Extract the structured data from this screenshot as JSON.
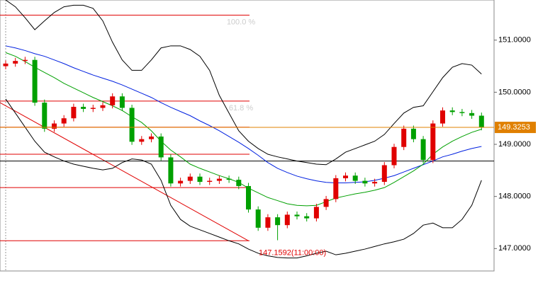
{
  "chart_data": {
    "type": "candlestick",
    "up_color": "#e00000",
    "down_color": "#00a000",
    "open": [
      150.5,
      150.55,
      150.6,
      150.62,
      149.8,
      149.3,
      149.4,
      149.5,
      149.72,
      149.68,
      149.7,
      149.75,
      149.92,
      149.7,
      149.05,
      149.1,
      149.15,
      148.75,
      148.25,
      148.3,
      148.38,
      148.28,
      148.3,
      148.34,
      148.32,
      148.2,
      147.75,
      147.4,
      147.6,
      147.45,
      147.65,
      147.62,
      147.58,
      147.8,
      147.95,
      148.35,
      148.4,
      148.3,
      148.25,
      148.28,
      148.6,
      148.95,
      149.3,
      149.1,
      148.7,
      149.4,
      149.65,
      149.62,
      149.6,
      149.55
    ],
    "high": [
      150.61,
      150.66,
      150.68,
      150.68,
      149.86,
      149.46,
      149.56,
      149.78,
      149.78,
      149.76,
      149.81,
      149.98,
      149.98,
      149.76,
      149.16,
      149.21,
      149.21,
      148.81,
      148.36,
      148.44,
      148.44,
      148.36,
      148.4,
      148.4,
      148.38,
      148.26,
      147.81,
      147.66,
      147.66,
      147.71,
      147.71,
      147.68,
      147.86,
      148.01,
      148.41,
      148.46,
      148.46,
      148.36,
      148.34,
      148.66,
      149.01,
      149.36,
      149.36,
      149.16,
      149.46,
      149.71,
      149.71,
      149.68,
      149.66,
      149.61
    ],
    "low": [
      150.44,
      150.49,
      150.54,
      149.74,
      149.24,
      149.24,
      149.34,
      149.44,
      149.62,
      149.62,
      149.64,
      149.69,
      149.64,
      148.99,
      148.99,
      149.04,
      148.69,
      148.19,
      148.19,
      148.24,
      148.22,
      148.22,
      148.24,
      148.26,
      148.14,
      147.69,
      147.34,
      147.34,
      147.16,
      147.39,
      147.56,
      147.52,
      147.52,
      147.74,
      147.89,
      148.29,
      148.24,
      148.19,
      148.19,
      148.22,
      148.54,
      148.89,
      149.04,
      148.64,
      148.64,
      149.34,
      149.56,
      149.54,
      149.49,
      149.27
    ],
    "close": [
      150.55,
      150.6,
      150.62,
      149.8,
      149.3,
      149.4,
      149.5,
      149.72,
      149.68,
      149.7,
      149.75,
      149.92,
      149.7,
      149.05,
      149.1,
      149.15,
      148.75,
      148.25,
      148.3,
      148.38,
      148.28,
      148.3,
      148.34,
      148.32,
      148.2,
      147.75,
      147.4,
      147.6,
      147.45,
      147.65,
      147.62,
      147.58,
      147.8,
      147.95,
      148.35,
      148.4,
      148.3,
      148.25,
      148.28,
      148.6,
      148.95,
      149.3,
      149.1,
      148.7,
      149.4,
      149.65,
      149.62,
      149.6,
      149.55,
      149.33
    ],
    "lines": [
      {
        "color": "#000000",
        "values": [
          151.77,
          151.64,
          151.43,
          151.2,
          151.37,
          151.53,
          151.64,
          151.67,
          151.67,
          151.61,
          151.37,
          150.96,
          150.62,
          150.42,
          150.42,
          150.62,
          150.85,
          150.89,
          150.89,
          150.82,
          150.69,
          150.42,
          149.94,
          149.6,
          149.26,
          149.06,
          148.92,
          148.81,
          148.76,
          148.72,
          148.68,
          148.65,
          148.62,
          148.61,
          148.72,
          148.85,
          148.92,
          148.99,
          149.06,
          149.19,
          149.4,
          149.6,
          149.71,
          149.74,
          150.01,
          150.28,
          150.48,
          150.55,
          150.52,
          150.35
        ]
      },
      {
        "color": "#000000",
        "values": [
          149.87,
          149.6,
          149.33,
          149.06,
          148.85,
          148.76,
          148.68,
          148.62,
          148.58,
          148.54,
          148.51,
          148.54,
          148.65,
          148.72,
          148.7,
          148.62,
          148.31,
          147.83,
          147.56,
          147.43,
          147.36,
          147.29,
          147.22,
          147.15,
          147.09,
          146.99,
          146.91,
          146.86,
          146.83,
          146.82,
          146.82,
          146.86,
          146.91,
          146.95,
          146.88,
          146.91,
          146.95,
          146.99,
          147.04,
          147.09,
          147.13,
          147.18,
          147.29,
          147.45,
          147.49,
          147.4,
          147.4,
          147.56,
          147.83,
          148.31
        ]
      },
      {
        "color": "#0020e0",
        "values": [
          150.89,
          150.85,
          150.8,
          150.74,
          150.69,
          150.62,
          150.55,
          150.47,
          150.4,
          150.33,
          150.27,
          150.21,
          150.14,
          150.06,
          149.98,
          149.9,
          149.8,
          149.71,
          149.63,
          149.55,
          149.45,
          149.36,
          149.26,
          149.15,
          149.04,
          148.92,
          148.79,
          148.65,
          148.54,
          148.46,
          148.39,
          148.34,
          148.3,
          148.27,
          148.26,
          148.26,
          148.27,
          148.28,
          148.31,
          148.35,
          148.4,
          148.47,
          148.54,
          148.61,
          148.68,
          148.76,
          148.81,
          148.87,
          148.92,
          148.96
        ]
      },
      {
        "color": "#00a000",
        "values": [
          150.76,
          150.69,
          150.59,
          150.48,
          150.38,
          150.28,
          150.17,
          150.08,
          149.99,
          149.9,
          149.82,
          149.74,
          149.65,
          149.53,
          149.42,
          149.26,
          149.06,
          148.89,
          148.76,
          148.62,
          148.54,
          148.47,
          148.4,
          148.34,
          148.27,
          148.16,
          148.07,
          147.98,
          147.92,
          147.86,
          147.83,
          147.82,
          147.83,
          147.9,
          147.97,
          148.01,
          148.05,
          148.08,
          148.12,
          148.17,
          148.27,
          148.38,
          148.49,
          148.62,
          148.81,
          148.95,
          149.06,
          149.15,
          149.23,
          149.29
        ]
      }
    ],
    "ylim": [
      146.57,
      151.77
    ],
    "yticks": [
      {
        "value": 147,
        "label": "147.0000"
      },
      {
        "value": 148,
        "label": "148.0000"
      },
      {
        "value": 149,
        "label": "149.0000"
      },
      {
        "value": 150,
        "label": "150.0000"
      },
      {
        "value": 151,
        "label": "151.0000"
      }
    ],
    "fib_color": "#e00000",
    "fib_levels": [
      {
        "value": 151.48,
        "label": "100.0 %"
      },
      {
        "value": 149.83,
        "label": "61.8 %"
      },
      149.33,
      148.81,
      148.17,
      147.15
    ],
    "trend_line": [
      149.8,
      147.15
    ],
    "h_line": 148.68,
    "price_line": {
      "value": 149.3253,
      "label": "149.3253",
      "color": "#e08000"
    },
    "annotation": {
      "value": 147.1592,
      "label": "147.1592(11:00:00)",
      "color": "#e00000"
    }
  }
}
